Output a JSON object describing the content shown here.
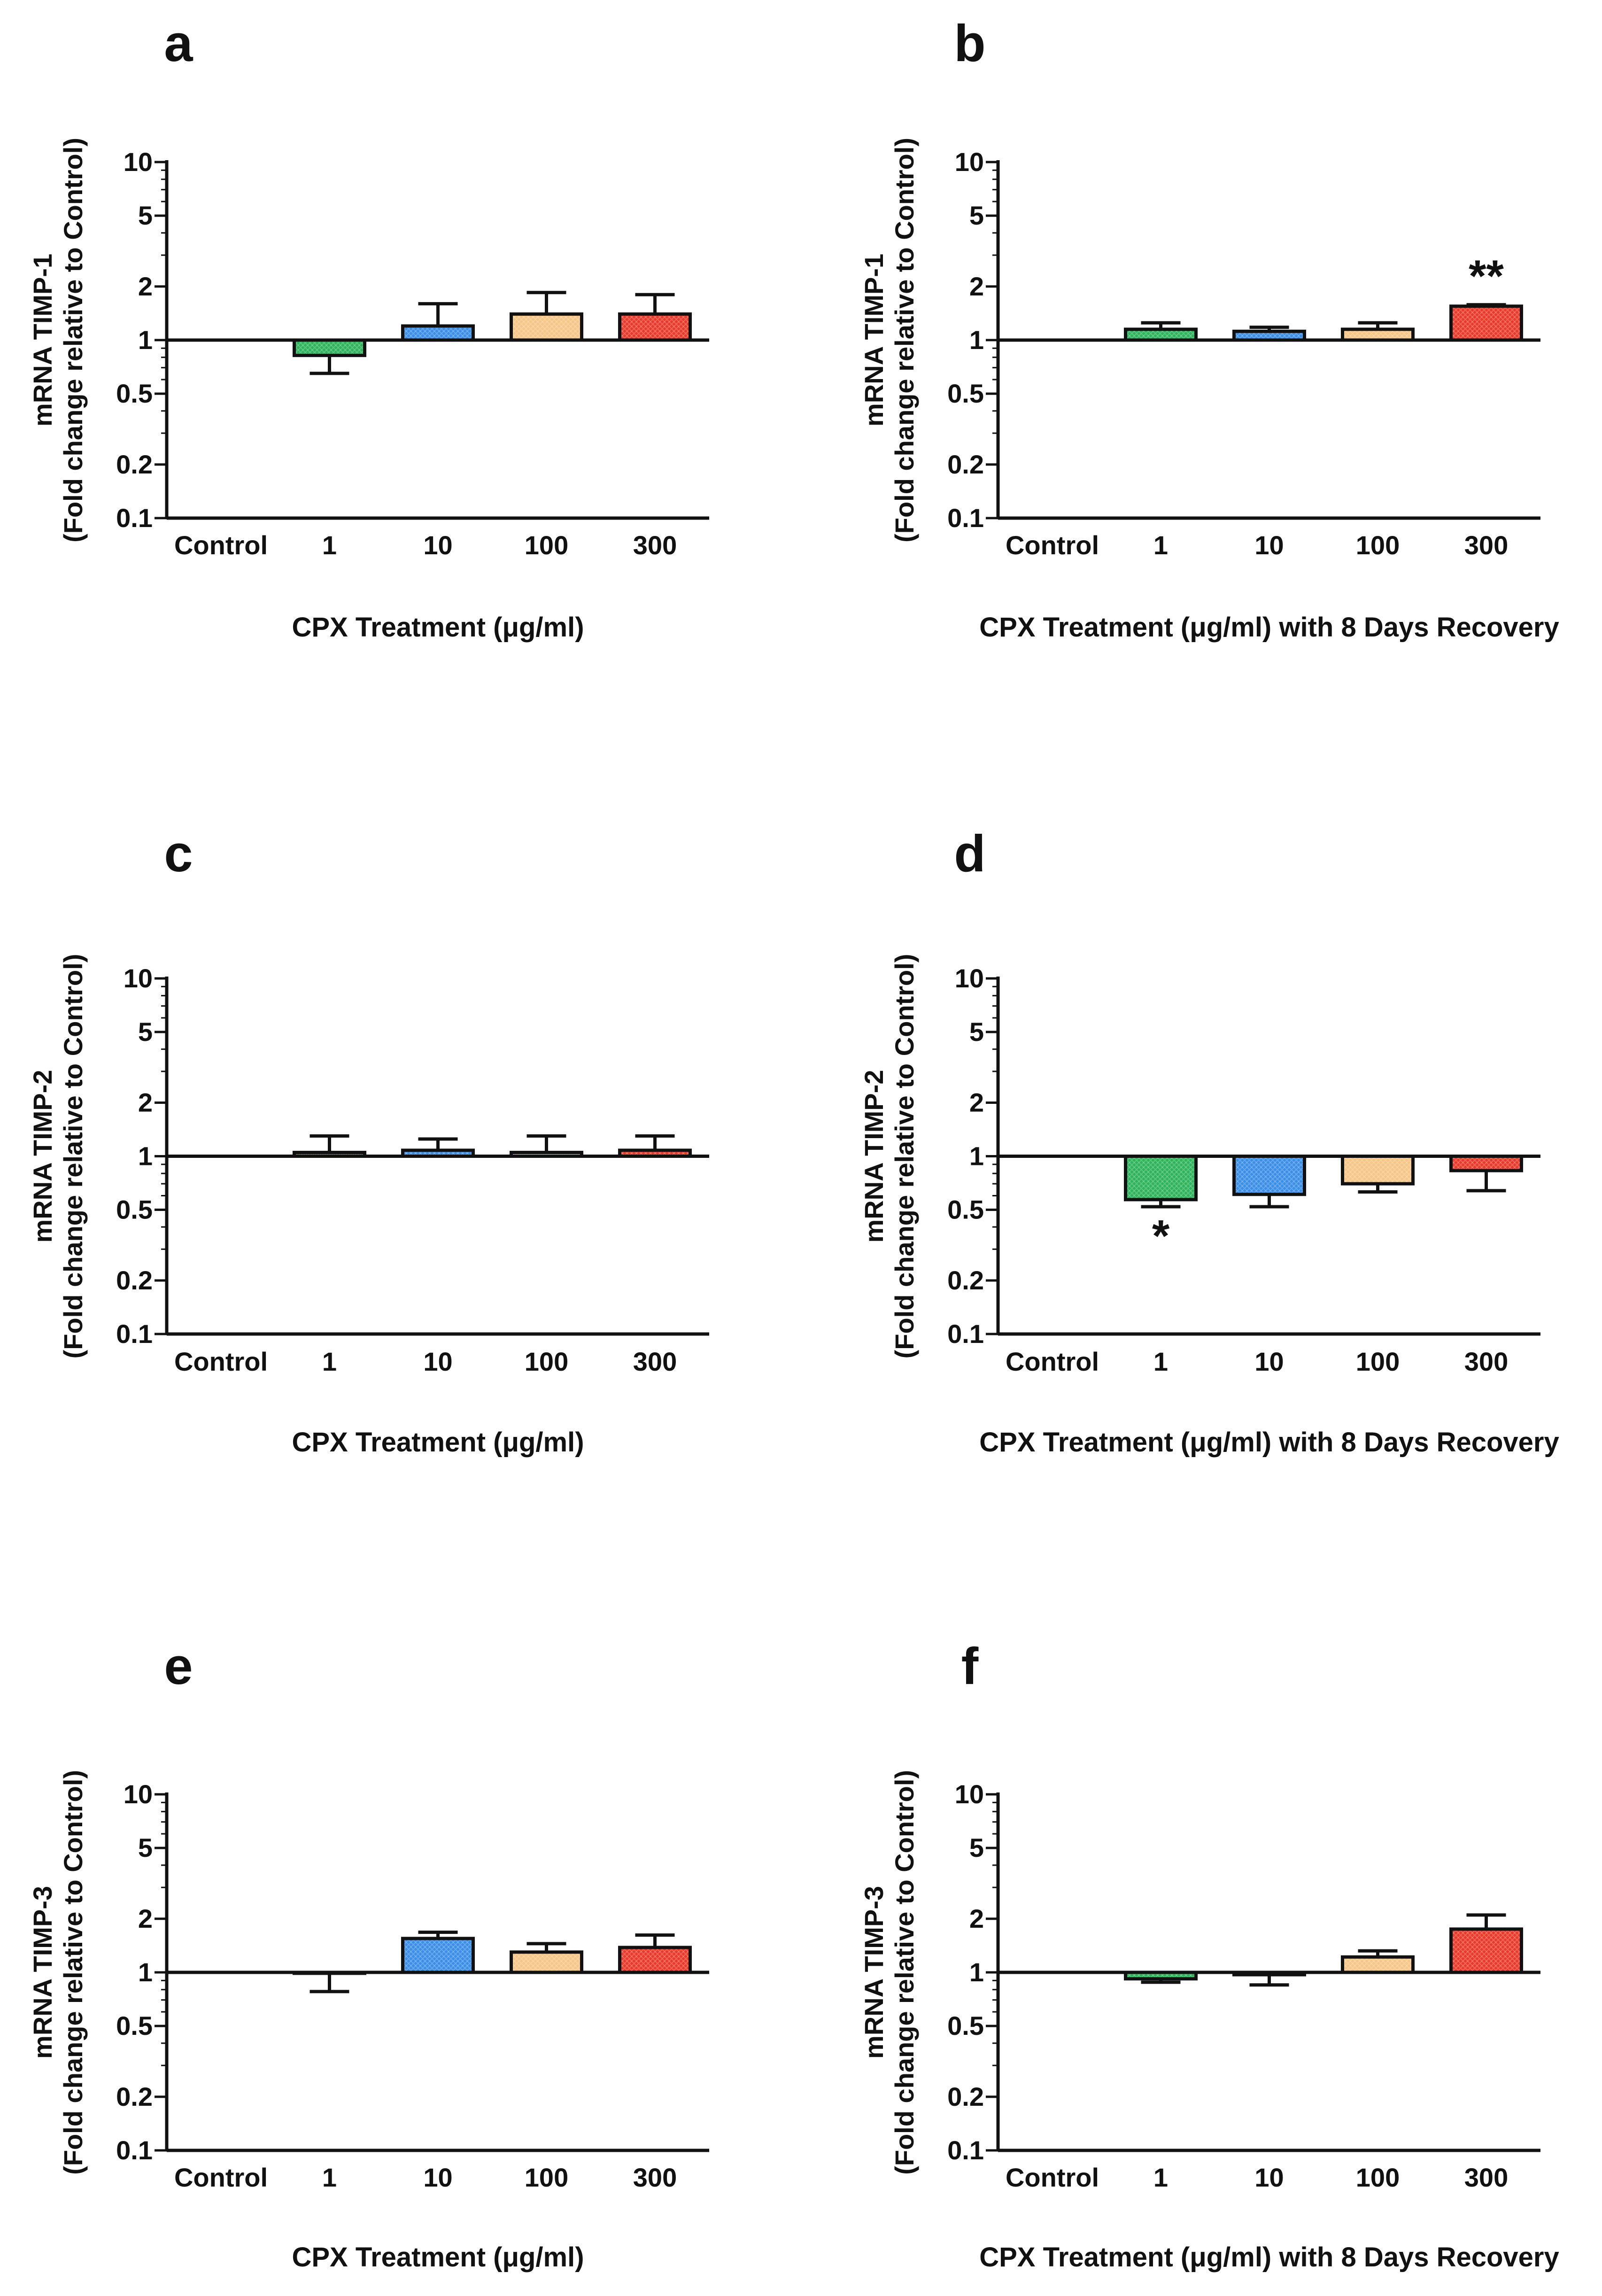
{
  "figure": {
    "background": "#ffffff"
  },
  "palette": {
    "green": "#2db35a",
    "blue": "#3a8ee6",
    "orange": "#f6c686",
    "red": "#e83a2a",
    "line": "#111111"
  },
  "chart_data": [
    {
      "panel": "a",
      "type": "bar",
      "yscale": "log",
      "ylabel": "mRNA TIMP-1",
      "ylabel2": "(Fold change relative to Control)",
      "xlabel": "CPX Treatment (μg/ml)",
      "categories": [
        "Control",
        "1",
        "10",
        "100",
        "300"
      ],
      "values": [
        1.0,
        0.82,
        1.2,
        1.4,
        1.4
      ],
      "error_ends": [
        null,
        0.65,
        1.6,
        1.85,
        1.8
      ],
      "colors": [
        null,
        "green",
        "blue",
        "orange",
        "red"
      ],
      "annotations": [
        "",
        "",
        "",
        "",
        ""
      ],
      "ylim": [
        0.1,
        10
      ],
      "yticks": [
        "10",
        "5",
        "2",
        "1",
        "0.5",
        "0.2",
        "0.1"
      ]
    },
    {
      "panel": "b",
      "type": "bar",
      "yscale": "log",
      "ylabel": "mRNA TIMP-1",
      "ylabel2": "(Fold change relative to Control)",
      "xlabel": "CPX Treatment (μg/ml) with 8 Days Recovery",
      "categories": [
        "Control",
        "1",
        "10",
        "100",
        "300"
      ],
      "values": [
        1.0,
        1.15,
        1.12,
        1.15,
        1.55
      ],
      "error_ends": [
        null,
        1.25,
        1.18,
        1.25,
        1.58
      ],
      "colors": [
        null,
        "green",
        "blue",
        "orange",
        "red"
      ],
      "annotations": [
        "",
        "",
        "",
        "",
        "**"
      ],
      "ylim": [
        0.1,
        10
      ],
      "yticks": [
        "10",
        "5",
        "2",
        "1",
        "0.5",
        "0.2",
        "0.1"
      ]
    },
    {
      "panel": "c",
      "type": "bar",
      "yscale": "log",
      "ylabel": "mRNA TIMP-2",
      "ylabel2": "(Fold change relative to Control)",
      "xlabel": "CPX Treatment (μg/ml)",
      "categories": [
        "Control",
        "1",
        "10",
        "100",
        "300"
      ],
      "values": [
        1.0,
        1.05,
        1.08,
        1.05,
        1.08
      ],
      "error_ends": [
        null,
        1.3,
        1.25,
        1.3,
        1.3
      ],
      "colors": [
        null,
        "green",
        "blue",
        "orange",
        "red"
      ],
      "annotations": [
        "",
        "",
        "",
        "",
        ""
      ],
      "ylim": [
        0.1,
        10
      ],
      "yticks": [
        "10",
        "5",
        "2",
        "1",
        "0.5",
        "0.2",
        "0.1"
      ]
    },
    {
      "panel": "d",
      "type": "bar",
      "yscale": "log",
      "ylabel": "mRNA TIMP-2",
      "ylabel2": "(Fold change relative to Control)",
      "xlabel": "CPX Treatment (μg/ml) with 8 Days Recovery",
      "categories": [
        "Control",
        "1",
        "10",
        "100",
        "300"
      ],
      "values": [
        1.0,
        0.57,
        0.61,
        0.7,
        0.83
      ],
      "error_ends": [
        null,
        0.52,
        0.52,
        0.63,
        0.64
      ],
      "colors": [
        null,
        "green",
        "blue",
        "orange",
        "red"
      ],
      "annotations": [
        "",
        "*",
        "",
        "",
        ""
      ],
      "ylim": [
        0.1,
        10
      ],
      "yticks": [
        "10",
        "5",
        "2",
        "1",
        "0.5",
        "0.2",
        "0.1"
      ]
    },
    {
      "panel": "e",
      "type": "bar",
      "yscale": "log",
      "ylabel": "mRNA TIMP-3",
      "ylabel2": "(Fold change relative to Control)",
      "xlabel": "CPX Treatment (μg/ml)",
      "categories": [
        "Control",
        "1",
        "10",
        "100",
        "300"
      ],
      "values": [
        1.0,
        1.0,
        1.55,
        1.3,
        1.38
      ],
      "error_ends": [
        null,
        0.78,
        1.68,
        1.45,
        1.62
      ],
      "colors": [
        null,
        "green",
        "blue",
        "orange",
        "red"
      ],
      "annotations": [
        "",
        "",
        "",
        "",
        ""
      ],
      "ylim": [
        0.1,
        10
      ],
      "yticks": [
        "10",
        "5",
        "2",
        "1",
        "0.5",
        "0.2",
        "0.1"
      ]
    },
    {
      "panel": "f",
      "type": "bar",
      "yscale": "log",
      "ylabel": "mRNA TIMP-3",
      "ylabel2": "(Fold change relative to Control)",
      "xlabel": "CPX Treatment (μg/ml) with 8 Days Recovery",
      "categories": [
        "Control",
        "1",
        "10",
        "100",
        "300"
      ],
      "values": [
        1.0,
        0.92,
        0.97,
        1.22,
        1.75
      ],
      "error_ends": [
        null,
        0.88,
        0.85,
        1.32,
        2.1
      ],
      "colors": [
        null,
        "green",
        "blue",
        "orange",
        "red"
      ],
      "annotations": [
        "",
        "",
        "",
        "",
        ""
      ],
      "ylim": [
        0.1,
        10
      ],
      "yticks": [
        "10",
        "5",
        "2",
        "1",
        "0.5",
        "0.2",
        "0.1"
      ]
    }
  ]
}
